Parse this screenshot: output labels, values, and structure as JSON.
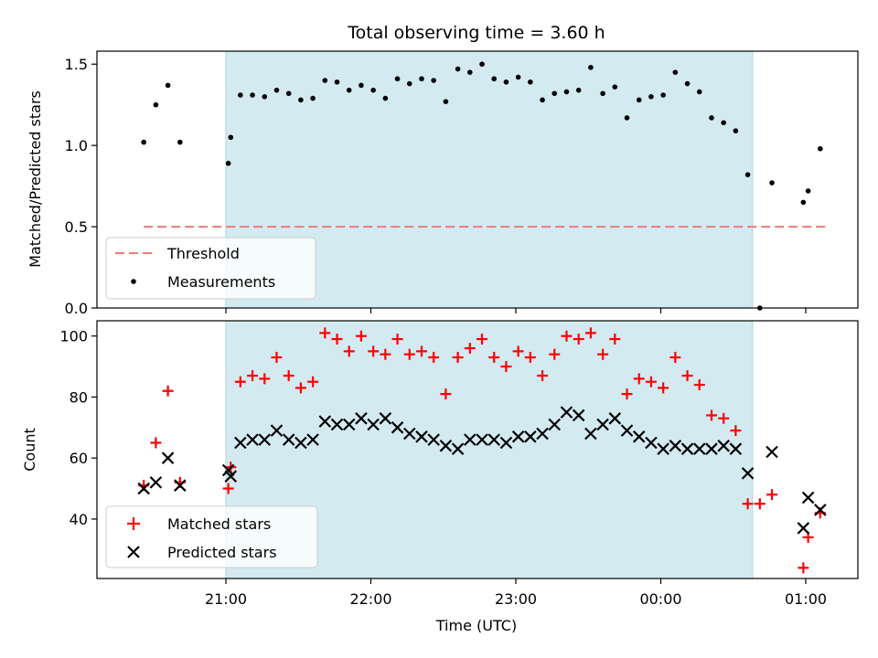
{
  "chart_data": [
    {
      "type": "scatter",
      "title": "Total observing time = 3.60 h",
      "ylabel": "Matched/Predicted stars",
      "xlabel": "",
      "ylim": [
        0,
        1.58
      ],
      "yticks": [
        "0.0",
        "0.5",
        "1.0",
        "1.5"
      ],
      "ytick_values": [
        0,
        0.5,
        1.0,
        1.5
      ],
      "grid": false,
      "legend_position": "lower-left",
      "shaded_span": {
        "start": "21:00",
        "end": "00:38",
        "color": "#d3eaf1"
      },
      "threshold": {
        "name": "Threshold",
        "value": 0.5,
        "x_start": "20:26",
        "x_end": "01:08",
        "color": "#f07a7a"
      },
      "series": [
        {
          "name": "Measurements",
          "color": "#000000",
          "points": [
            {
              "x": "20:26",
              "y": 1.02
            },
            {
              "x": "20:31",
              "y": 1.25
            },
            {
              "x": "20:36",
              "y": 1.37
            },
            {
              "x": "20:41",
              "y": 1.02
            },
            {
              "x": "21:01",
              "y": 0.89
            },
            {
              "x": "21:02",
              "y": 1.05
            },
            {
              "x": "21:06",
              "y": 1.31
            },
            {
              "x": "21:11",
              "y": 1.31
            },
            {
              "x": "21:16",
              "y": 1.3
            },
            {
              "x": "21:21",
              "y": 1.34
            },
            {
              "x": "21:26",
              "y": 1.32
            },
            {
              "x": "21:31",
              "y": 1.28
            },
            {
              "x": "21:36",
              "y": 1.29
            },
            {
              "x": "21:41",
              "y": 1.4
            },
            {
              "x": "21:46",
              "y": 1.39
            },
            {
              "x": "21:51",
              "y": 1.34
            },
            {
              "x": "21:56",
              "y": 1.37
            },
            {
              "x": "22:01",
              "y": 1.34
            },
            {
              "x": "22:06",
              "y": 1.29
            },
            {
              "x": "22:11",
              "y": 1.41
            },
            {
              "x": "22:16",
              "y": 1.38
            },
            {
              "x": "22:21",
              "y": 1.41
            },
            {
              "x": "22:26",
              "y": 1.4
            },
            {
              "x": "22:31",
              "y": 1.27
            },
            {
              "x": "22:36",
              "y": 1.47
            },
            {
              "x": "22:41",
              "y": 1.45
            },
            {
              "x": "22:46",
              "y": 1.5
            },
            {
              "x": "22:51",
              "y": 1.41
            },
            {
              "x": "22:56",
              "y": 1.39
            },
            {
              "x": "23:01",
              "y": 1.42
            },
            {
              "x": "23:06",
              "y": 1.39
            },
            {
              "x": "23:11",
              "y": 1.28
            },
            {
              "x": "23:16",
              "y": 1.32
            },
            {
              "x": "23:21",
              "y": 1.33
            },
            {
              "x": "23:26",
              "y": 1.34
            },
            {
              "x": "23:31",
              "y": 1.48
            },
            {
              "x": "23:36",
              "y": 1.32
            },
            {
              "x": "23:41",
              "y": 1.36
            },
            {
              "x": "23:46",
              "y": 1.17
            },
            {
              "x": "23:51",
              "y": 1.28
            },
            {
              "x": "23:56",
              "y": 1.3
            },
            {
              "x": "00:01",
              "y": 1.31
            },
            {
              "x": "00:06",
              "y": 1.45
            },
            {
              "x": "00:11",
              "y": 1.38
            },
            {
              "x": "00:16",
              "y": 1.33
            },
            {
              "x": "00:21",
              "y": 1.17
            },
            {
              "x": "00:26",
              "y": 1.14
            },
            {
              "x": "00:31",
              "y": 1.09
            },
            {
              "x": "00:36",
              "y": 0.82
            },
            {
              "x": "00:41",
              "y": 0.0
            },
            {
              "x": "00:46",
              "y": 0.77
            },
            {
              "x": "00:59",
              "y": 0.65
            },
            {
              "x": "01:01",
              "y": 0.72
            },
            {
              "x": "01:06",
              "y": 0.98
            }
          ]
        }
      ]
    },
    {
      "type": "scatter",
      "title": "",
      "ylabel": "Count",
      "xlabel": "Time (UTC)",
      "ylim": [
        20.5,
        105
      ],
      "yticks": [
        "40",
        "60",
        "80",
        "100"
      ],
      "ytick_values": [
        40,
        60,
        80,
        100
      ],
      "xticks": [
        "21:00",
        "22:00",
        "23:00",
        "00:00",
        "01:00"
      ],
      "grid": false,
      "legend_position": "lower-left",
      "shaded_span": {
        "start": "21:00",
        "end": "00:38",
        "color": "#d3eaf1"
      },
      "series": [
        {
          "name": "Matched stars",
          "color": "#ff0000",
          "marker": "+",
          "points": [
            {
              "x": "20:26",
              "y": 51
            },
            {
              "x": "20:31",
              "y": 65
            },
            {
              "x": "20:36",
              "y": 82
            },
            {
              "x": "20:41",
              "y": 52
            },
            {
              "x": "21:01",
              "y": 50
            },
            {
              "x": "21:02",
              "y": 57
            },
            {
              "x": "21:06",
              "y": 85
            },
            {
              "x": "21:11",
              "y": 87
            },
            {
              "x": "21:16",
              "y": 86
            },
            {
              "x": "21:21",
              "y": 93
            },
            {
              "x": "21:26",
              "y": 87
            },
            {
              "x": "21:31",
              "y": 83
            },
            {
              "x": "21:36",
              "y": 85
            },
            {
              "x": "21:41",
              "y": 101
            },
            {
              "x": "21:46",
              "y": 99
            },
            {
              "x": "21:51",
              "y": 95
            },
            {
              "x": "21:56",
              "y": 100
            },
            {
              "x": "22:01",
              "y": 95
            },
            {
              "x": "22:06",
              "y": 94
            },
            {
              "x": "22:11",
              "y": 99
            },
            {
              "x": "22:16",
              "y": 94
            },
            {
              "x": "22:21",
              "y": 95
            },
            {
              "x": "22:26",
              "y": 93
            },
            {
              "x": "22:31",
              "y": 81
            },
            {
              "x": "22:36",
              "y": 93
            },
            {
              "x": "22:41",
              "y": 96
            },
            {
              "x": "22:46",
              "y": 99
            },
            {
              "x": "22:51",
              "y": 93
            },
            {
              "x": "22:56",
              "y": 90
            },
            {
              "x": "23:01",
              "y": 95
            },
            {
              "x": "23:06",
              "y": 93
            },
            {
              "x": "23:11",
              "y": 87
            },
            {
              "x": "23:16",
              "y": 94
            },
            {
              "x": "23:21",
              "y": 100
            },
            {
              "x": "23:26",
              "y": 99
            },
            {
              "x": "23:31",
              "y": 101
            },
            {
              "x": "23:36",
              "y": 94
            },
            {
              "x": "23:41",
              "y": 99
            },
            {
              "x": "23:46",
              "y": 81
            },
            {
              "x": "23:51",
              "y": 86
            },
            {
              "x": "23:56",
              "y": 85
            },
            {
              "x": "00:01",
              "y": 83
            },
            {
              "x": "00:06",
              "y": 93
            },
            {
              "x": "00:11",
              "y": 87
            },
            {
              "x": "00:16",
              "y": 84
            },
            {
              "x": "00:21",
              "y": 74
            },
            {
              "x": "00:26",
              "y": 73
            },
            {
              "x": "00:31",
              "y": 69
            },
            {
              "x": "00:36",
              "y": 45
            },
            {
              "x": "00:41",
              "y": 45
            },
            {
              "x": "00:46",
              "y": 48
            },
            {
              "x": "00:59",
              "y": 24
            },
            {
              "x": "01:01",
              "y": 34
            },
            {
              "x": "01:06",
              "y": 42
            }
          ]
        },
        {
          "name": "Predicted stars",
          "color": "#000000",
          "marker": "x",
          "points": [
            {
              "x": "20:26",
              "y": 50
            },
            {
              "x": "20:31",
              "y": 52
            },
            {
              "x": "20:36",
              "y": 60
            },
            {
              "x": "20:41",
              "y": 51
            },
            {
              "x": "21:01",
              "y": 56
            },
            {
              "x": "21:02",
              "y": 54
            },
            {
              "x": "21:06",
              "y": 65
            },
            {
              "x": "21:11",
              "y": 66
            },
            {
              "x": "21:16",
              "y": 66
            },
            {
              "x": "21:21",
              "y": 69
            },
            {
              "x": "21:26",
              "y": 66
            },
            {
              "x": "21:31",
              "y": 65
            },
            {
              "x": "21:36",
              "y": 66
            },
            {
              "x": "21:41",
              "y": 72
            },
            {
              "x": "21:46",
              "y": 71
            },
            {
              "x": "21:51",
              "y": 71
            },
            {
              "x": "21:56",
              "y": 73
            },
            {
              "x": "22:01",
              "y": 71
            },
            {
              "x": "22:06",
              "y": 73
            },
            {
              "x": "22:11",
              "y": 70
            },
            {
              "x": "22:16",
              "y": 68
            },
            {
              "x": "22:21",
              "y": 67
            },
            {
              "x": "22:26",
              "y": 66
            },
            {
              "x": "22:31",
              "y": 64
            },
            {
              "x": "22:36",
              "y": 63
            },
            {
              "x": "22:41",
              "y": 66
            },
            {
              "x": "22:46",
              "y": 66
            },
            {
              "x": "22:51",
              "y": 66
            },
            {
              "x": "22:56",
              "y": 65
            },
            {
              "x": "23:01",
              "y": 67
            },
            {
              "x": "23:06",
              "y": 67
            },
            {
              "x": "23:11",
              "y": 68
            },
            {
              "x": "23:16",
              "y": 71
            },
            {
              "x": "23:21",
              "y": 75
            },
            {
              "x": "23:26",
              "y": 74
            },
            {
              "x": "23:31",
              "y": 68
            },
            {
              "x": "23:36",
              "y": 71
            },
            {
              "x": "23:41",
              "y": 73
            },
            {
              "x": "23:46",
              "y": 69
            },
            {
              "x": "23:51",
              "y": 67
            },
            {
              "x": "23:56",
              "y": 65
            },
            {
              "x": "00:01",
              "y": 63
            },
            {
              "x": "00:06",
              "y": 64
            },
            {
              "x": "00:11",
              "y": 63
            },
            {
              "x": "00:16",
              "y": 63
            },
            {
              "x": "00:21",
              "y": 63
            },
            {
              "x": "00:26",
              "y": 64
            },
            {
              "x": "00:31",
              "y": 63
            },
            {
              "x": "00:36",
              "y": 55
            },
            {
              "x": "00:46",
              "y": 62
            },
            {
              "x": "00:59",
              "y": 37
            },
            {
              "x": "01:01",
              "y": 47
            },
            {
              "x": "01:06",
              "y": 43
            }
          ]
        }
      ]
    }
  ]
}
